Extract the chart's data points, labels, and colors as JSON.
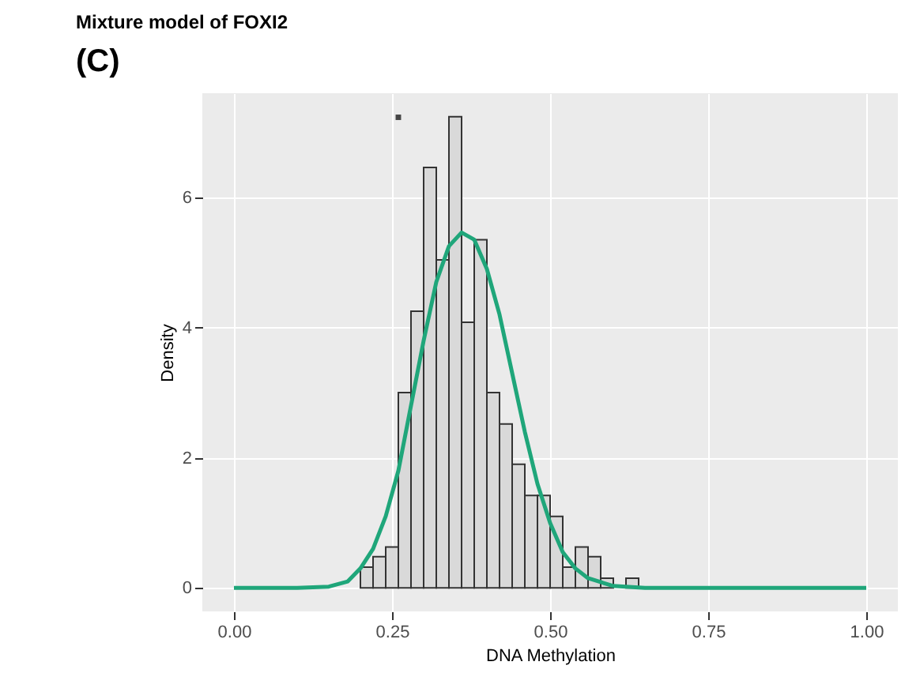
{
  "chart_data": {
    "type": "histogram",
    "title": "Mixture model of FOXI2",
    "xlabel": "DNA Methylation",
    "ylabel": "Density",
    "annotations": [
      "(C)"
    ],
    "bins": [
      0.2,
      0.22,
      0.24,
      0.26,
      0.28,
      0.3,
      0.32,
      0.34,
      0.36,
      0.38,
      0.4,
      0.42,
      0.44,
      0.46,
      0.48,
      0.5,
      0.52,
      0.54,
      0.56,
      0.58,
      0.6,
      0.62,
      0.64
    ],
    "values": [
      0.32,
      0.48,
      0.63,
      3.0,
      4.25,
      6.46,
      5.04,
      7.24,
      4.08,
      5.35,
      3.0,
      2.52,
      1.9,
      1.42,
      1.42,
      1.1,
      0.32,
      0.63,
      0.48,
      0.15,
      0,
      0.15
    ],
    "color": "#d9d9d9",
    "series": [
      {
        "type": "line",
        "color": "#1fa67a",
        "x": [
          0,
          0.1,
          0.15,
          0.18,
          0.2,
          0.22,
          0.24,
          0.26,
          0.28,
          0.3,
          0.32,
          0.34,
          0.36,
          0.38,
          0.4,
          0.42,
          0.44,
          0.46,
          0.48,
          0.5,
          0.52,
          0.54,
          0.56,
          0.6,
          0.65,
          1.0
        ],
        "values": [
          0,
          0,
          0.02,
          0.1,
          0.3,
          0.6,
          1.1,
          1.8,
          2.8,
          3.8,
          4.7,
          5.25,
          5.46,
          5.35,
          4.9,
          4.2,
          3.3,
          2.4,
          1.6,
          1.0,
          0.55,
          0.3,
          0.15,
          0.03,
          0,
          0
        ]
      },
      {
        "type": "scatter",
        "color": "#000000",
        "x": [
          0.26
        ],
        "values": [
          7.23
        ]
      }
    ],
    "xlim": [
      -0.05,
      1.05
    ],
    "ylim": [
      -0.36,
      7.6
    ],
    "xticks": [
      {
        "value": 0,
        "label": "0.00"
      },
      0.25,
      {
        "value": 0.5,
        "label": "0.50"
      },
      0.75,
      {
        "value": 1,
        "label": "1.00"
      }
    ],
    "yticks": [
      0,
      2,
      4,
      6
    ],
    "grid": true
  }
}
